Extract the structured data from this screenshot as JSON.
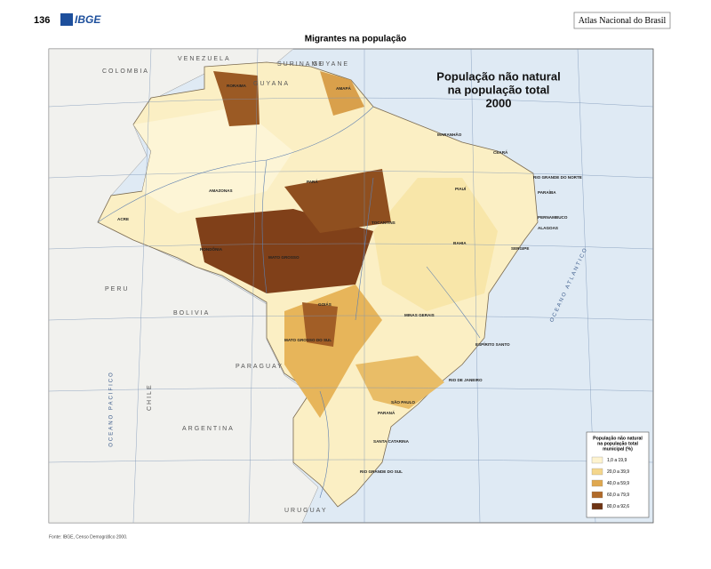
{
  "header": {
    "page_number": "136",
    "logo": "IBGE",
    "atlas_title": "Atlas Nacional do Brasil"
  },
  "title": "Migrantes na população",
  "map": {
    "title_lines": [
      "População não natural",
      "na população total",
      "2000"
    ],
    "country_labels": [
      "COLOMBIA",
      "VENEZUELA",
      "GUYANA",
      "SURINAME",
      "GUYANE",
      "PERU",
      "BOLIVIA",
      "PARAGUAY",
      "ARGENTINA",
      "URUGUAY",
      "CHILE"
    ],
    "ocean_labels": [
      "OCEANO PACIFICO",
      "OCEANO ATLANTICO"
    ],
    "state_labels": [
      "RORAIMA",
      "AMAPÁ",
      "AMAZONAS",
      "PARÁ",
      "MARANHÃO",
      "CEARÁ",
      "RIO GRANDE DO NORTE",
      "PARAÍBA",
      "PERNAMBUCO",
      "ALAGOAS",
      "SERGIPE",
      "PIAUÍ",
      "BAHIA",
      "TOCANTINS",
      "ACRE",
      "RONDÔNIA",
      "MATO GROSSO",
      "GOIÁS",
      "MINAS GERAIS",
      "ESPÍRITO SANTO",
      "RIO DE JANEIRO",
      "SÃO PAULO",
      "MATO GROSSO DO SUL",
      "PARANÁ",
      "SANTA CATARINA",
      "RIO GRANDE DO SUL"
    ]
  },
  "legend": {
    "title_lines": [
      "População não natural",
      "na população total",
      "municipal (%)"
    ],
    "items": [
      {
        "label": "1,0 a 19,9",
        "color": "#fdf3cf"
      },
      {
        "label": "20,0 a 39,9",
        "color": "#f4d68c"
      },
      {
        "label": "40,0 a 59,9",
        "color": "#dfa84f"
      },
      {
        "label": "60,0 a 79,9",
        "color": "#b06a2a"
      },
      {
        "label": "80,0 a 92,6",
        "color": "#6e3414"
      }
    ]
  },
  "source": "Fonte: IBGE, Censo Demográfico 2000."
}
